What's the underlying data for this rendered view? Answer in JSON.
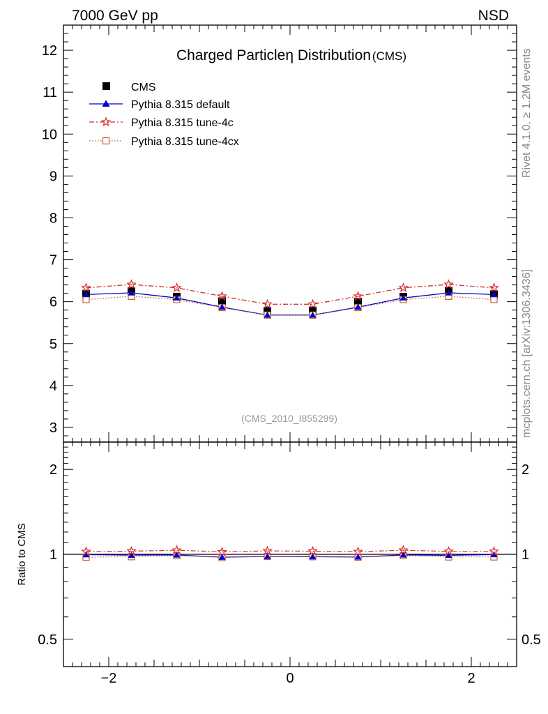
{
  "header": {
    "energy_label": "7000 GeV pp",
    "process_label": "NSD",
    "side_rivet": "Rivet 4.1.0, ≥ 1.2M events",
    "side_mcplots": "mcplots.cern.ch [arXiv:1306.3436]"
  },
  "chart_data": {
    "type": "line",
    "title": "Charged Particleη Distribution",
    "title_suffix": "(CMS)",
    "analysis_label": "(CMS_2010_I855299)",
    "x": [
      -2.25,
      -1.75,
      -1.25,
      -0.75,
      -0.25,
      0.25,
      0.75,
      1.25,
      1.75,
      2.25
    ],
    "xlim": [
      -2.5,
      2.5
    ],
    "xticks": [
      -2,
      0,
      2
    ],
    "xtick_labels": [
      "−2",
      "0",
      "2"
    ],
    "ylim": [
      2.65,
      12.6
    ],
    "yticks": [
      3,
      4,
      5,
      6,
      7,
      8,
      9,
      10,
      11,
      12
    ],
    "ytick_labels": [
      "3",
      "4",
      "5",
      "6",
      "7",
      "8",
      "9",
      "10",
      "11",
      "12"
    ],
    "series": [
      {
        "name": "CMS",
        "style": "data",
        "color": "#000000",
        "values": [
          6.19,
          6.25,
          6.12,
          6.01,
          5.78,
          5.79,
          6.0,
          6.12,
          6.26,
          6.18
        ]
      },
      {
        "name": "Pythia 8.315 default",
        "style": "triangle",
        "color": "#0000cc",
        "values": [
          6.17,
          6.21,
          6.09,
          5.87,
          5.68,
          5.68,
          5.87,
          6.09,
          6.21,
          6.17
        ]
      },
      {
        "name": "Pythia 8.315 tune-4c",
        "style": "star",
        "color": "#d42e2e",
        "values": [
          6.33,
          6.41,
          6.33,
          6.13,
          5.94,
          5.94,
          6.13,
          6.33,
          6.41,
          6.33
        ]
      },
      {
        "name": "Pythia 8.315 tune-4cx",
        "style": "square",
        "color": "#c0602a",
        "values": [
          6.05,
          6.13,
          6.05,
          5.86,
          5.68,
          5.68,
          5.86,
          6.05,
          6.13,
          6.05
        ]
      }
    ],
    "ratio": {
      "ylabel": "Ratio to CMS",
      "ylim": [
        0.4,
        2.5
      ],
      "yticks": [
        0.5,
        1,
        2
      ],
      "ytick_labels": [
        "0.5",
        "1",
        "2"
      ],
      "series": [
        {
          "name": "Pythia 8.315 default",
          "values": [
            0.997,
            0.993,
            0.995,
            0.977,
            0.983,
            0.981,
            0.978,
            0.995,
            0.992,
            0.998
          ]
        },
        {
          "name": "Pythia 8.315 tune-4c",
          "values": [
            1.023,
            1.026,
            1.034,
            1.02,
            1.028,
            1.026,
            1.022,
            1.034,
            1.024,
            1.024
          ]
        },
        {
          "name": "Pythia 8.315 tune-4cx",
          "values": [
            0.977,
            0.981,
            0.989,
            0.975,
            0.983,
            0.981,
            0.977,
            0.989,
            0.979,
            0.979
          ]
        }
      ]
    }
  }
}
